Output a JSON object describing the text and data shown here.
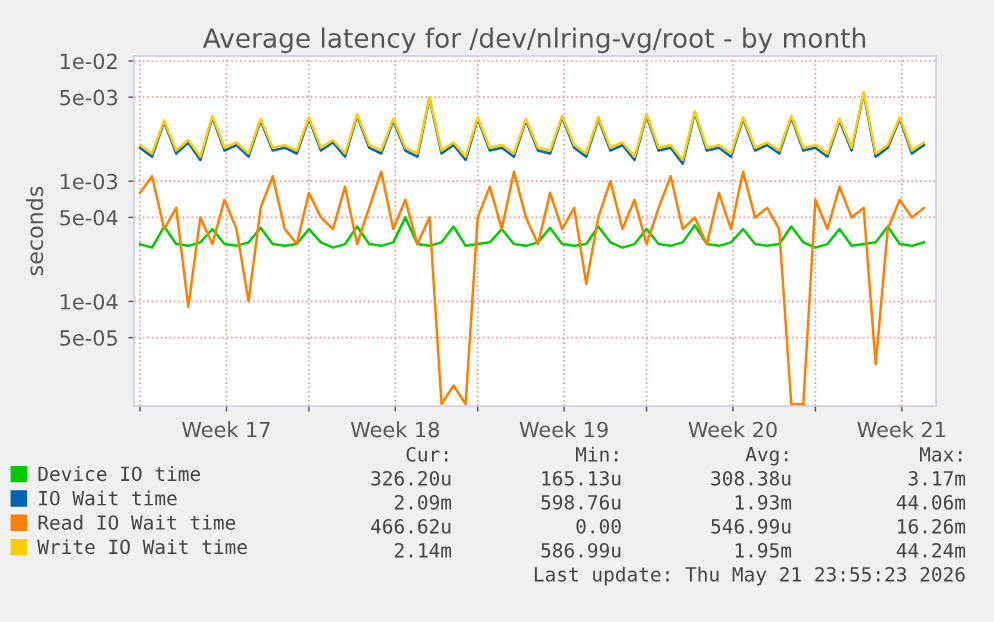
{
  "chart_data": {
    "type": "line",
    "title": "Average latency for /dev/nlring-vg/root - by month",
    "ylabel": "seconds",
    "log": "y",
    "grid": true,
    "legend": "bottom left",
    "ylim": [
      1.35e-05,
      0.011
    ],
    "yticks": [
      {
        "value": 0.01,
        "label": "1e-02"
      },
      {
        "value": 0.005,
        "label": "5e-03"
      },
      {
        "value": 0.001,
        "label": "1e-03"
      },
      {
        "value": 0.0005,
        "label": "5e-04"
      },
      {
        "value": 0.0001,
        "label": "1e-04"
      },
      {
        "value": 5e-05,
        "label": "5e-05"
      }
    ],
    "xlim": [
      "2026-04-18T18:00",
      "2026-05-22T00:00"
    ],
    "xticks": [
      {
        "value": "2026-04-19",
        "label": null
      },
      {
        "value": "2026-04-22T14:00",
        "label": "Week 17"
      },
      {
        "value": "2026-04-26",
        "label": null
      },
      {
        "value": "2026-04-29T14:00",
        "label": "Week 18"
      },
      {
        "value": "2026-05-03",
        "label": null
      },
      {
        "value": "2026-05-06T14:00",
        "label": "Week 19"
      },
      {
        "value": "2026-05-10",
        "label": null
      },
      {
        "value": "2026-05-13T14:00",
        "label": "Week 20"
      },
      {
        "value": "2026-05-17",
        "label": null
      },
      {
        "value": "2026-05-20T14:00",
        "label": "Week 21"
      }
    ],
    "x": [
      "2026-04-19T00:00",
      "2026-04-19T12:00",
      "2026-04-20T00:00",
      "2026-04-20T12:00",
      "2026-04-21T00:00",
      "2026-04-21T12:00",
      "2026-04-22T00:00",
      "2026-04-22T12:00",
      "2026-04-23T00:00",
      "2026-04-23T12:00",
      "2026-04-24T00:00",
      "2026-04-24T12:00",
      "2026-04-25T00:00",
      "2026-04-25T12:00",
      "2026-04-26T00:00",
      "2026-04-26T12:00",
      "2026-04-27T00:00",
      "2026-04-27T12:00",
      "2026-04-28T00:00",
      "2026-04-28T12:00",
      "2026-04-29T00:00",
      "2026-04-29T12:00",
      "2026-04-30T00:00",
      "2026-04-30T12:00",
      "2026-05-01T00:00",
      "2026-05-01T12:00",
      "2026-05-02T00:00",
      "2026-05-02T12:00",
      "2026-05-03T00:00",
      "2026-05-03T12:00",
      "2026-05-04T00:00",
      "2026-05-04T12:00",
      "2026-05-05T00:00",
      "2026-05-05T12:00",
      "2026-05-06T00:00",
      "2026-05-06T12:00",
      "2026-05-07T00:00",
      "2026-05-07T12:00",
      "2026-05-08T00:00",
      "2026-05-08T12:00",
      "2026-05-09T00:00",
      "2026-05-09T12:00",
      "2026-05-10T00:00",
      "2026-05-10T12:00",
      "2026-05-11T00:00",
      "2026-05-11T12:00",
      "2026-05-12T00:00",
      "2026-05-12T12:00",
      "2026-05-13T00:00",
      "2026-05-13T12:00",
      "2026-05-14T00:00",
      "2026-05-14T12:00",
      "2026-05-15T00:00",
      "2026-05-15T12:00",
      "2026-05-16T00:00",
      "2026-05-16T12:00",
      "2026-05-17T00:00",
      "2026-05-17T12:00",
      "2026-05-18T00:00",
      "2026-05-18T12:00",
      "2026-05-19T00:00",
      "2026-05-19T12:00",
      "2026-05-20T00:00",
      "2026-05-20T12:00",
      "2026-05-21T00:00",
      "2026-05-21T12:00"
    ],
    "series": [
      {
        "name": "Device IO time",
        "color": "#00cc00",
        "values": [
          0.0003,
          0.00028,
          0.00042,
          0.0003,
          0.00029,
          0.00031,
          0.0004,
          0.0003,
          0.00029,
          0.00031,
          0.00041,
          0.0003,
          0.00029,
          0.0003,
          0.0004,
          0.00031,
          0.00028,
          0.0003,
          0.00042,
          0.0003,
          0.00029,
          0.00031,
          0.0005,
          0.0003,
          0.00029,
          0.00031,
          0.00042,
          0.00029,
          0.0003,
          0.00031,
          0.0004,
          0.0003,
          0.00029,
          0.00031,
          0.00041,
          0.0003,
          0.00029,
          0.0003,
          0.00042,
          0.00031,
          0.00028,
          0.0003,
          0.0004,
          0.0003,
          0.00029,
          0.00031,
          0.00043,
          0.0003,
          0.00029,
          0.00031,
          0.0004,
          0.0003,
          0.00029,
          0.0003,
          0.00042,
          0.00031,
          0.00028,
          0.0003,
          0.0004,
          0.00029,
          0.0003,
          0.00031,
          0.00042,
          0.0003,
          0.00029,
          0.00031
        ]
      },
      {
        "name": "IO Wait time",
        "color": "#0066b3",
        "values": [
          0.0019,
          0.0016,
          0.0031,
          0.0017,
          0.0021,
          0.0015,
          0.0034,
          0.0018,
          0.002,
          0.0016,
          0.0032,
          0.0018,
          0.0019,
          0.0017,
          0.0033,
          0.0018,
          0.0021,
          0.0016,
          0.0035,
          0.0019,
          0.0017,
          0.0032,
          0.0018,
          0.0016,
          0.0049,
          0.0017,
          0.002,
          0.0015,
          0.0033,
          0.0018,
          0.0019,
          0.0016,
          0.0032,
          0.0018,
          0.0017,
          0.0034,
          0.0019,
          0.0016,
          0.0033,
          0.0018,
          0.002,
          0.0015,
          0.0035,
          0.0018,
          0.0019,
          0.0014,
          0.0037,
          0.0018,
          0.0019,
          0.0016,
          0.0033,
          0.0018,
          0.002,
          0.0017,
          0.0034,
          0.0018,
          0.0019,
          0.0016,
          0.0032,
          0.0018,
          0.0054,
          0.0016,
          0.0019,
          0.0033,
          0.0017,
          0.002
        ]
      },
      {
        "name": "Read IO Wait time",
        "color": "#ff8000",
        "values": [
          0.0008,
          0.0011,
          0.0004,
          0.0006,
          9e-05,
          0.0005,
          0.0003,
          0.0007,
          0.0004,
          0.0001,
          0.0006,
          0.0011,
          0.0004,
          0.0003,
          0.0008,
          0.0005,
          0.0004,
          0.0009,
          0.0003,
          0.0006,
          0.0012,
          0.0004,
          0.0007,
          0.0003,
          0.0005,
          1.4e-05,
          2e-05,
          1.4e-05,
          0.0005,
          0.0009,
          0.0004,
          0.0012,
          0.0005,
          0.0003,
          0.0008,
          0.0004,
          0.0006,
          0.00014,
          0.0005,
          0.001,
          0.0004,
          0.0007,
          0.0003,
          0.0006,
          0.0011,
          0.0004,
          0.0005,
          0.0003,
          0.0008,
          0.0004,
          0.0012,
          0.0005,
          0.0006,
          0.0004,
          1.4e-05,
          1.4e-05,
          0.0007,
          0.0004,
          0.0009,
          0.0005,
          0.0006,
          3e-05,
          0.0004,
          0.0007,
          0.0005,
          0.0006
        ]
      },
      {
        "name": "Write IO Wait time",
        "color": "#ffcc00",
        "values": [
          0.002,
          0.0017,
          0.0032,
          0.0018,
          0.0022,
          0.0016,
          0.0035,
          0.0019,
          0.0021,
          0.0017,
          0.0033,
          0.0019,
          0.002,
          0.0018,
          0.0034,
          0.0019,
          0.0022,
          0.0017,
          0.0036,
          0.002,
          0.0018,
          0.0033,
          0.0019,
          0.0017,
          0.005,
          0.0018,
          0.0021,
          0.0016,
          0.0034,
          0.0019,
          0.002,
          0.0017,
          0.0033,
          0.0019,
          0.0018,
          0.0035,
          0.002,
          0.0017,
          0.0034,
          0.0019,
          0.0021,
          0.0016,
          0.0036,
          0.0019,
          0.002,
          0.0015,
          0.0038,
          0.0019,
          0.002,
          0.0017,
          0.0034,
          0.0019,
          0.0021,
          0.0018,
          0.0035,
          0.0019,
          0.002,
          0.0017,
          0.0033,
          0.0019,
          0.0055,
          0.0017,
          0.002,
          0.0034,
          0.0018,
          0.0021
        ]
      }
    ],
    "annotations": [
      "Cur:",
      "Min:",
      "Avg:",
      "Max:",
      "326.20u",
      "165.13u",
      "308.38u",
      "3.17m",
      "2.09m",
      "598.76u",
      "1.93m",
      "44.06m",
      "466.62u",
      "0.00",
      "546.99u",
      "16.26m",
      "2.14m",
      "586.99u",
      "1.95m",
      "44.24m",
      "Last update: Thu May 21 23:55:23 2026"
    ]
  }
}
